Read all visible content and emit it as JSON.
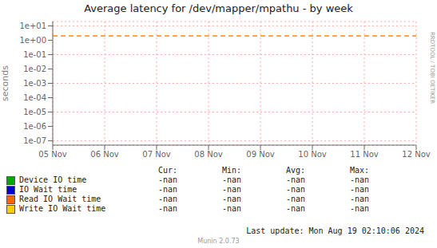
{
  "chart_data": {
    "type": "line",
    "title": "Average latency for /dev/mapper/mpathu - by week",
    "ylabel": "seconds",
    "categories": [
      "05 Nov",
      "06 Nov",
      "07 Nov",
      "08 Nov",
      "09 Nov",
      "10 Nov",
      "11 Nov",
      "12 Nov"
    ],
    "log": "y",
    "ylim": [
      5e-08,
      20
    ],
    "yticks": [
      {
        "value": 1e-07,
        "label": "1e-07"
      },
      {
        "value": 1e-06,
        "label": "1e-06"
      },
      {
        "value": 1e-05,
        "label": "1e-05"
      },
      {
        "value": 0.0001,
        "label": "1e-04"
      },
      {
        "value": 0.001,
        "label": "1e-03"
      },
      {
        "value": 0.01,
        "label": "1e-02"
      },
      {
        "value": 0.1,
        "label": "1e-01"
      },
      {
        "value": 1,
        "label": "1e+00"
      },
      {
        "value": 10,
        "label": "1e+01"
      }
    ],
    "grid": true,
    "legend": "bottom",
    "hlines": [
      {
        "y": 2.0,
        "color": "#ff8c00",
        "line_style": "dashed"
      }
    ],
    "table_headers": [
      "Cur:",
      "Min:",
      "Avg:",
      "Max:"
    ],
    "series": [
      {
        "name": "Device IO time",
        "color": "#00aa00",
        "values": [
          null,
          null,
          null,
          null,
          null,
          null,
          null,
          null
        ],
        "table_values": [
          "-nan",
          "-nan",
          "-nan",
          "-nan"
        ]
      },
      {
        "name": "IO Wait time",
        "color": "#0000cc",
        "values": [
          null,
          null,
          null,
          null,
          null,
          null,
          null,
          null
        ],
        "table_values": [
          "-nan",
          "-nan",
          "-nan",
          "-nan"
        ]
      },
      {
        "name": "Read IO Wait time",
        "color": "#ff6600",
        "values": [
          null,
          null,
          null,
          null,
          null,
          null,
          null,
          null
        ],
        "table_values": [
          "-nan",
          "-nan",
          "-nan",
          "-nan"
        ]
      },
      {
        "name": "Write IO Wait time",
        "color": "#ffcc00",
        "values": [
          null,
          null,
          null,
          null,
          null,
          null,
          null,
          null
        ],
        "table_values": [
          "-nan",
          "-nan",
          "-nan",
          "-nan"
        ]
      }
    ],
    "annotations": [
      "Last update: Mon Aug 19 02:10:06 2024",
      "Munin 2.0.73",
      "RRDTOOL / TOBI OETIKER"
    ]
  }
}
